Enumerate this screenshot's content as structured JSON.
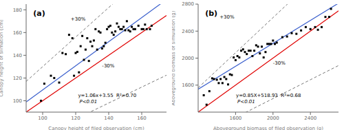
{
  "chart_data": [
    {
      "type": "scatter",
      "marker": "square",
      "color": "#000000",
      "grid": false,
      "xlabel": "Canopy height of filed observation  (cm)",
      "ylabel": "Canopy height of slimation  (cm)",
      "xlim": [
        90,
        175
      ],
      "ylim": [
        90,
        185
      ],
      "xticks": [
        100,
        120,
        140,
        160
      ],
      "yticks": [
        100,
        120,
        140,
        160,
        180
      ],
      "x": [
        99,
        101,
        105,
        107,
        110,
        112,
        114,
        116,
        118,
        119,
        120,
        121,
        122,
        123,
        124,
        125,
        126,
        127,
        128,
        129,
        130,
        131,
        132,
        133,
        134,
        135,
        136,
        137,
        138,
        139,
        140,
        141,
        142,
        143,
        144,
        145,
        146,
        147,
        148,
        149,
        150,
        151,
        152,
        153,
        154,
        155,
        156,
        158,
        160,
        161,
        162,
        163,
        165,
        166
      ],
      "values": [
        100,
        115,
        122,
        120,
        116,
        142,
        141,
        158,
        155,
        122,
        142,
        143,
        125,
        148,
        157,
        136,
        145,
        155,
        135,
        152,
        148,
        153,
        163,
        145,
        161,
        160,
        146,
        148,
        151,
        163,
        165,
        166,
        160,
        158,
        161,
        168,
        165,
        163,
        163,
        165,
        162,
        170,
        162,
        161,
        165,
        163,
        163,
        166,
        163,
        163,
        167,
        163,
        163,
        166
      ],
      "lines": [
        {
          "slope": 1.3,
          "intercept": 0,
          "color": "#555555",
          "line_style": "dashed"
        },
        {
          "slope": 0.7,
          "intercept": 0,
          "color": "#555555",
          "line_style": "dashed"
        },
        {
          "slope": 1,
          "intercept": 0,
          "color": "#e00000",
          "line_style": "solid"
        },
        {
          "slope": 1.06,
          "intercept": 3.55,
          "color": "#3a5fcd",
          "line_style": "solid"
        }
      ],
      "annotations": [
        "(a)",
        "y=1.06x+3.55  R²=0.70",
        "P<0.01",
        "+30%",
        "-30%"
      ]
    },
    {
      "type": "scatter",
      "marker": "square",
      "color": "#000000",
      "grid": false,
      "xlabel": "Aboveground biomass of filed observation (g)",
      "ylabel": "Aboveground biomass of simulation (g)",
      "xlim": [
        1200,
        2700
      ],
      "ylim": [
        1200,
        2800
      ],
      "xticks": [
        1600,
        2000,
        2400
      ],
      "yticks": [
        1600,
        2000,
        2400,
        2800
      ],
      "x": [
        1260,
        1290,
        1320,
        1350,
        1370,
        1400,
        1420,
        1440,
        1460,
        1480,
        1500,
        1520,
        1540,
        1560,
        1580,
        1600,
        1620,
        1640,
        1660,
        1680,
        1700,
        1720,
        1740,
        1760,
        1780,
        1800,
        1820,
        1840,
        1860,
        1880,
        1900,
        1920,
        1940,
        1960,
        1980,
        2000,
        2020,
        2040,
        2100,
        2150,
        2200,
        2250,
        2300,
        2350,
        2400,
        2450,
        2480,
        2520,
        2560,
        2600,
        2620
      ],
      "values": [
        1450,
        1310,
        1510,
        1700,
        1690,
        1680,
        1630,
        1690,
        1630,
        1720,
        1690,
        1610,
        1760,
        1750,
        2010,
        1970,
        2030,
        2010,
        2110,
        2130,
        2090,
        2060,
        2110,
        2110,
        2030,
        2110,
        2190,
        2170,
        2070,
        2170,
        2010,
        2090,
        2210,
        2210,
        2210,
        2260,
        2210,
        2230,
        2310,
        2320,
        2370,
        2360,
        2410,
        2460,
        2430,
        2460,
        2420,
        2460,
        2610,
        2610,
        2730
      ],
      "lines": [
        {
          "slope": 1.3,
          "intercept": 0,
          "color": "#555555",
          "line_style": "dashed"
        },
        {
          "slope": 0.7,
          "intercept": 0,
          "color": "#555555",
          "line_style": "dashed"
        },
        {
          "slope": 1,
          "intercept": 0,
          "color": "#e00000",
          "line_style": "solid"
        },
        {
          "slope": 0.85,
          "intercept": 518.93,
          "color": "#3a5fcd",
          "line_style": "solid"
        }
      ],
      "annotations": [
        "(b)",
        "y=0.85X+518.93  R²=0.68",
        "P<0.01",
        "+30%",
        "-30%"
      ]
    }
  ]
}
